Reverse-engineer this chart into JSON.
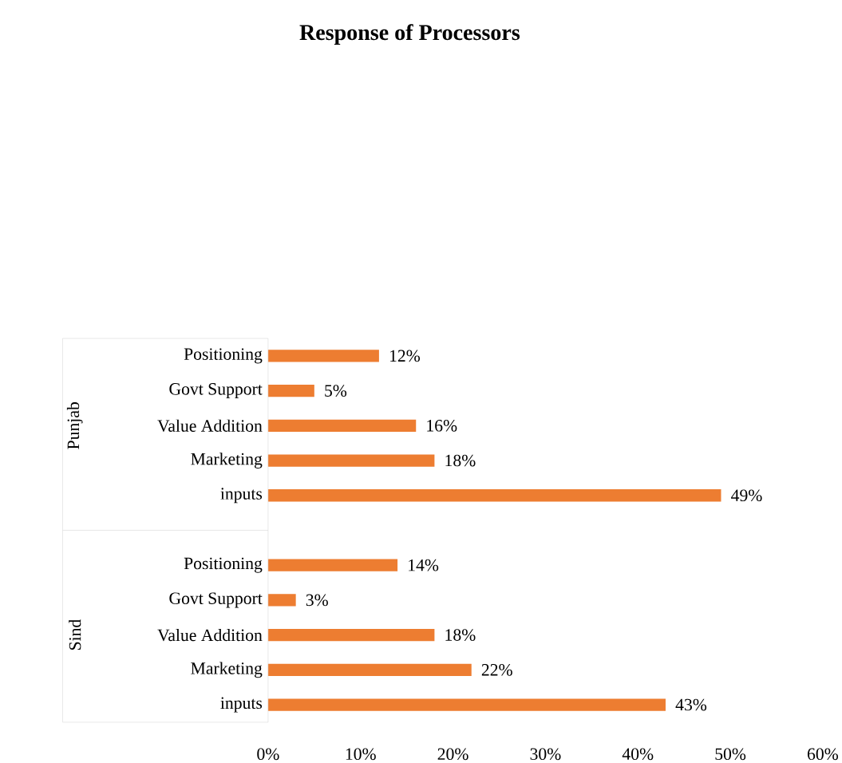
{
  "chart_data": {
    "type": "bar",
    "orientation": "horizontal",
    "title": "Response of Processors",
    "categories": [
      "Positioning",
      "Govt Support",
      "Value Addition",
      "Marketing",
      "inputs",
      null,
      "Positioning",
      "Govt Support",
      "Value Addition",
      "Marketing",
      "inputs"
    ],
    "values": [
      12,
      5,
      16,
      18,
      49,
      null,
      14,
      3,
      18,
      22,
      43
    ],
    "value_labels": [
      "12%",
      "5%",
      "16%",
      "18%",
      "49%",
      null,
      "14%",
      "3%",
      "18%",
      "22%",
      "43%"
    ],
    "color": "#ed7d31",
    "xlim": [
      0,
      60
    ],
    "xticks": [
      {
        "value": 0,
        "label": "0%"
      },
      {
        "value": 10,
        "label": "10%"
      },
      {
        "value": 20,
        "label": "20%"
      },
      {
        "value": 30,
        "label": "30%"
      },
      {
        "value": 40,
        "label": "40%"
      },
      {
        "value": 50,
        "label": "50%"
      },
      {
        "value": 60,
        "label": "60%"
      }
    ],
    "annotations": [
      "Punjab",
      "Sind"
    ]
  }
}
